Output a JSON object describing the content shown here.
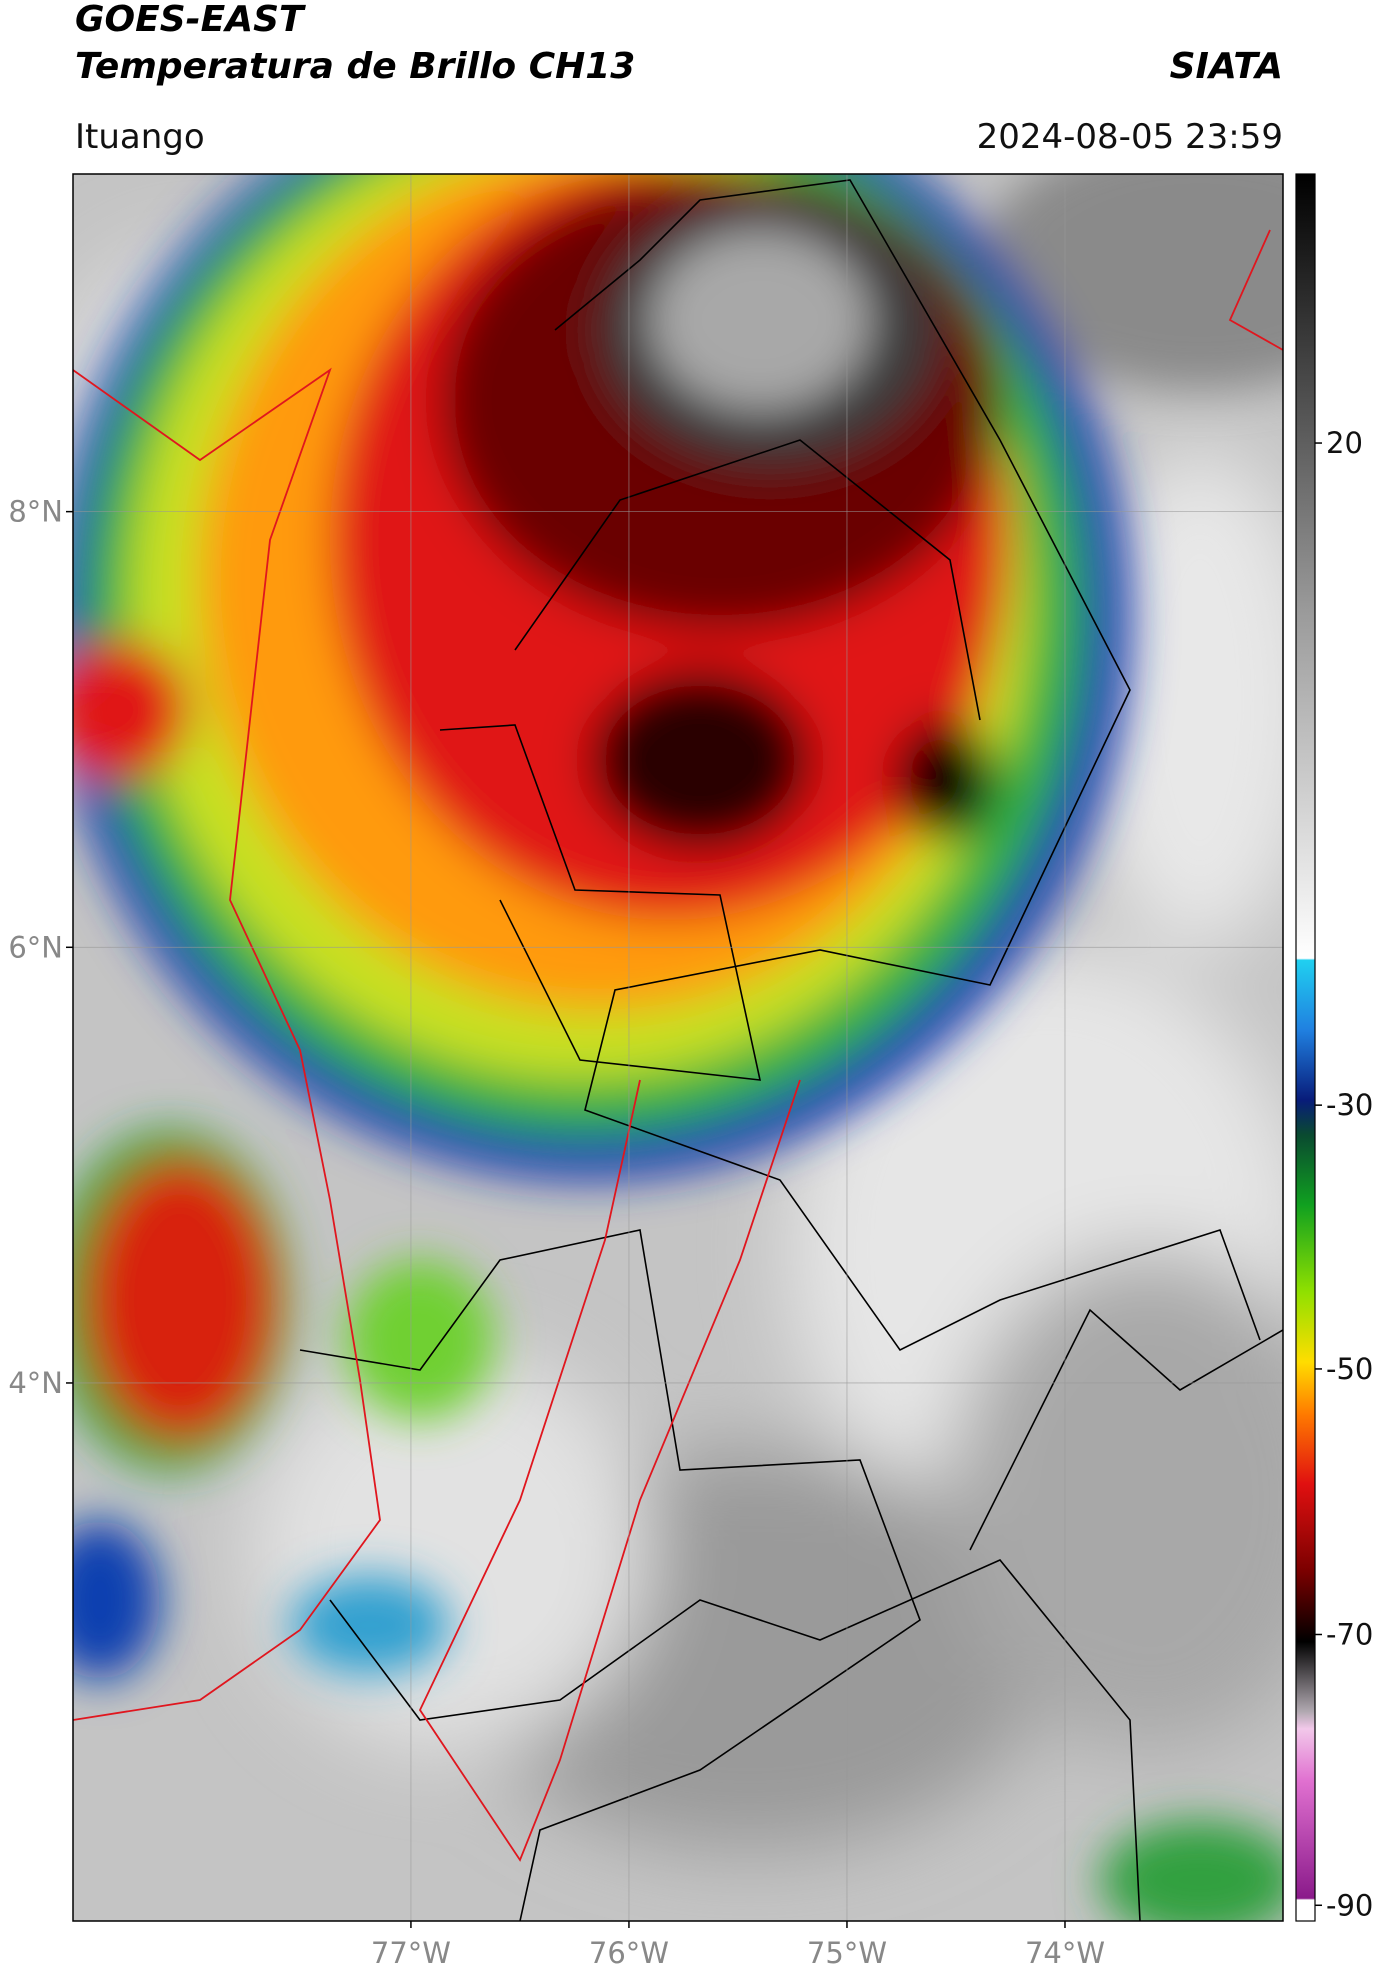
{
  "header": {
    "title": "GOES-EAST",
    "subtitle": "Temperatura de Brillo CH13",
    "source": "SIATA",
    "location": "Ituango",
    "datetime": "2024-08-05 23:59"
  },
  "map": {
    "xlim": [
      -78.55,
      -73.0
    ],
    "ylim": [
      1.53,
      9.55
    ],
    "xticks": [
      {
        "value": -77,
        "label": "77°W"
      },
      {
        "value": -76,
        "label": "76°W"
      },
      {
        "value": -75,
        "label": "75°W"
      },
      {
        "value": -74,
        "label": "74°W"
      }
    ],
    "yticks": [
      {
        "value": 8,
        "label": "8°N"
      },
      {
        "value": 6,
        "label": "6°N"
      },
      {
        "value": 4,
        "label": "4°N"
      }
    ],
    "grid": true
  },
  "colorbar": {
    "ticks": [
      20,
      -30,
      -50,
      -70,
      -90
    ]
  }
}
